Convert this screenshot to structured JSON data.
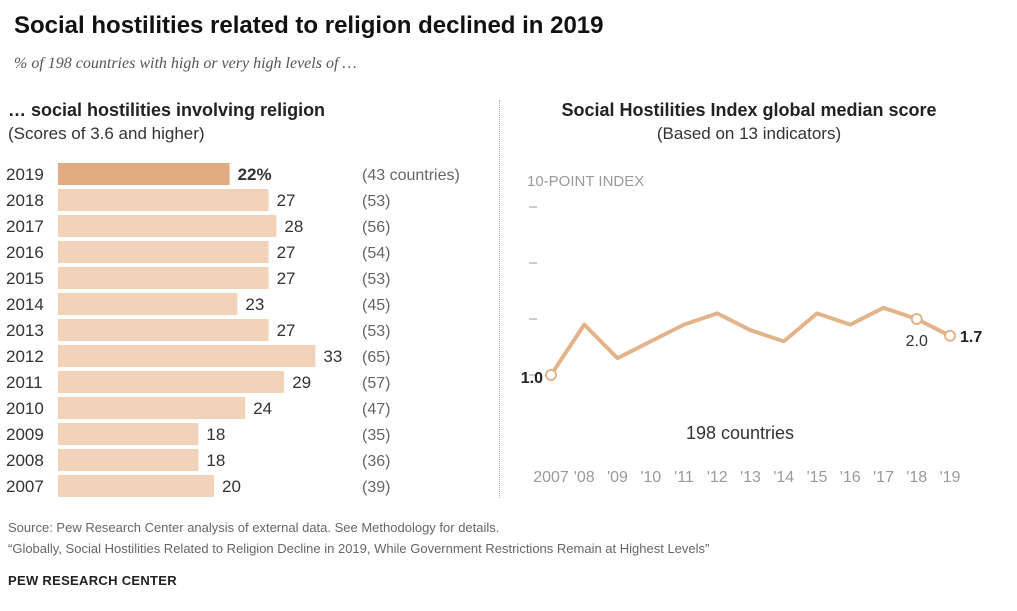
{
  "header": {
    "title": "Social hostilities related to religion declined in 2019",
    "subtitle": "% of 198 countries with high or very high levels of …"
  },
  "left_panel": {
    "title": "… social hostilities involving religion",
    "subtitle": "(Scores of 3.6 and higher)"
  },
  "right_panel": {
    "title": "Social Hostilities Index global median score",
    "subtitle": "(Based on 13 indicators)"
  },
  "footer": {
    "source": "Source: Pew Research Center analysis of external data. See Methodology for details.",
    "report": "“Globally, Social Hostilities Related to Religion Decline in 2019, While Government Restrictions Remain at Highest Levels”",
    "brand": "PEW RESEARCH CENTER"
  },
  "colors": {
    "highlight_bar": "#e0ac80",
    "bar": "#f2d3ba",
    "line": "#e3b48a",
    "axis_text": "#9a9a9a"
  },
  "chart_data": [
    {
      "type": "bar",
      "orientation": "horizontal",
      "categories": [
        "2019",
        "2018",
        "2017",
        "2016",
        "2015",
        "2014",
        "2013",
        "2012",
        "2011",
        "2010",
        "2009",
        "2008",
        "2007"
      ],
      "values": [
        22,
        27,
        28,
        27,
        27,
        23,
        27,
        33,
        29,
        24,
        18,
        18,
        20
      ],
      "value_labels": [
        "22%",
        "27",
        "28",
        "27",
        "27",
        "23",
        "27",
        "33",
        "29",
        "24",
        "18",
        "18",
        "20"
      ],
      "country_counts": [
        "(43 countries)",
        "(53)",
        "(56)",
        "(54)",
        "(53)",
        "(45)",
        "(53)",
        "(65)",
        "(57)",
        "(47)",
        "(35)",
        "(36)",
        "(39)"
      ],
      "highlight_index": 0,
      "xlim": [
        0,
        100
      ]
    },
    {
      "type": "line",
      "axis_label": "10-POINT INDEX",
      "x": [
        "2007",
        "'08",
        "'09",
        "'10",
        "'11",
        "'12",
        "'13",
        "'14",
        "'15",
        "'16",
        "'17",
        "'18",
        "'19"
      ],
      "values": [
        1.0,
        1.9,
        1.3,
        1.6,
        1.9,
        2.1,
        1.8,
        1.6,
        2.1,
        1.9,
        2.2,
        2.0,
        1.7
      ],
      "point_labels": [
        {
          "index": 0,
          "text": "1.0"
        },
        {
          "index": 11,
          "text": "2.0"
        },
        {
          "index": 12,
          "text": "1.7"
        }
      ],
      "series_label": "198 countries",
      "ylim": [
        0,
        10
      ]
    }
  ]
}
